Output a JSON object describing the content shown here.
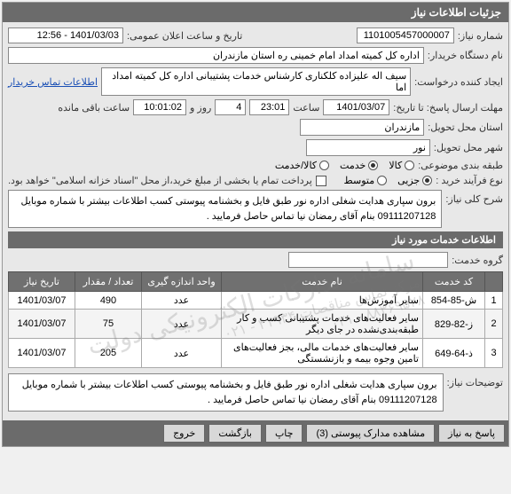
{
  "header": {
    "title": "جزئیات اطلاعات نیاز"
  },
  "info": {
    "need_no_label": "شماره نیاز:",
    "need_no": "1101005457000007",
    "datetime_label": "تاریخ و ساعت اعلان عمومی:",
    "datetime": "1401/03/03 - 12:56",
    "buyer_label": "نام دستگاه خریدار:",
    "buyer": "اداره کل کمیته امداد امام خمینی  ره  استان مازندران",
    "requester_label": "ایجاد کننده درخواست:",
    "requester": "سیف اله علیزاده کلکناری کارشناس خدمات پشتیبانی اداره کل کمیته امداد اما",
    "contact_link": "اطلاعات تماس خریدار",
    "deadline_label": "مهلت ارسال پاسخ: تا تاریخ:",
    "deadline_date": "1401/03/07",
    "time_label": "ساعت",
    "deadline_time": "23:01",
    "days": "4",
    "day_label": "روز و",
    "remain_time": "10:01:02",
    "remain_label": "ساعت باقی مانده",
    "province_label": "استان محل تحویل:",
    "province": "مازندران",
    "city_label": "شهر محل تحویل:",
    "city": "نور",
    "topic_type_label": "طبقه بندی موضوعی:",
    "topic_goods": "کالا",
    "topic_service": "خدمت",
    "topic_both": "کالا/خدمت",
    "process_label": "نوع فرآیند خرید :",
    "proc_minor": "جزیی",
    "proc_medium": "متوسط",
    "pay_note": "پرداخت تمام یا بخشی از مبلغ خرید،از محل \"اسناد خزانه اسلامی\" خواهد بود.",
    "desc_label": "شرح کلی نیاز:",
    "desc_text": "برون سپاری هدایت شغلی اداره نور طبق فایل و بخشنامه پیوستی کسب اطلاعات بیشتر با شماره موبایل 09111207128 بنام آقای رمضان نیا  تماس حاصل فرمایید ."
  },
  "services": {
    "header": "اطلاعات خدمات مورد نیاز",
    "group_label": "گروه خدمت:",
    "columns": [
      "",
      "کد خدمت",
      "نام خدمت",
      "واحد اندازه گیری",
      "تعداد / مقدار",
      "تاریخ نیاز"
    ],
    "rows": [
      {
        "idx": "1",
        "code": "ش-85-854",
        "name": "سایر آموزش‌ها",
        "unit": "عدد",
        "qty": "490",
        "date": "1401/03/07"
      },
      {
        "idx": "2",
        "code": "ز-82-829",
        "name": "سایر فعالیت‌های خدمات پشتیبانی کسب و کار طبقه‌بندی‌نشده در جای دیگر",
        "unit": "عدد",
        "qty": "75",
        "date": "1401/03/07"
      },
      {
        "idx": "3",
        "code": "ذ-64-649",
        "name": "سایر فعالیت‌های خدمات مالی، بجز فعالیت‌های تامین وجوه بیمه و بازنشستگی",
        "unit": "عدد",
        "qty": "205",
        "date": "1401/03/07"
      }
    ],
    "watermark_top": "سامانه تدارکات الکترونیکی دولت",
    "watermark_phone": "مرکز تماس مناقصات ۴۱۹۳۴ - ۰۲۱",
    "watermark_phone2": "۸۸۳۶۹۵۲۸ - ۰۲۱"
  },
  "notes": {
    "label": "توضیحات نیاز:",
    "text": "برون سپاری هدایت شغلی اداره نور طبق فایل و بخشنامه پیوستی کسب اطلاعات بیشتر با شماره موبایل 09111207128 بنام آقای رمضان نیا  تماس حاصل فرمایید ."
  },
  "footer": {
    "respond": "پاسخ به نیاز",
    "attachments": "مشاهده مدارک پیوستی (3)",
    "print": "چاپ",
    "back": "بازگشت",
    "exit": "خروج"
  }
}
